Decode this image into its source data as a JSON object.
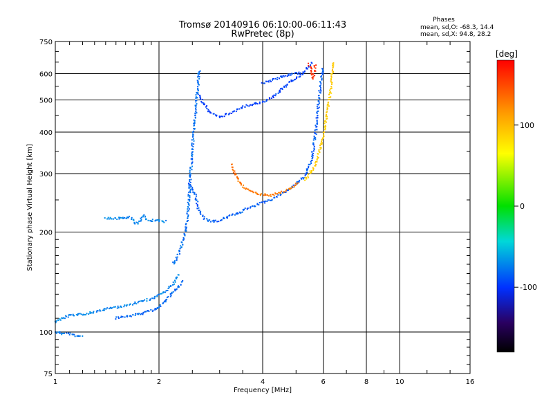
{
  "chart_data": {
    "type": "scatter",
    "title": "Tromsø 20140916 06:10:00-06:11:43",
    "subtitle": "RwPretec (8p)",
    "xlabel": "Frequency [MHz]",
    "ylabel": "Stationary phase Virtual Height [km]",
    "xscale": "log",
    "yscale": "log",
    "xlim": [
      1,
      16
    ],
    "ylim": [
      75,
      750
    ],
    "x_ticks": [
      {
        "value": 1,
        "label": "1"
      },
      {
        "value": 2,
        "label": "2"
      },
      {
        "value": 4,
        "label": "4"
      },
      {
        "value": 6,
        "label": "6"
      },
      {
        "value": 8,
        "label": "8"
      },
      {
        "value": 10,
        "label": "10"
      },
      {
        "value": 16,
        "label": "16"
      }
    ],
    "y_ticks": [
      {
        "value": 75,
        "label": "75"
      },
      {
        "value": 100,
        "label": "100"
      },
      {
        "value": 200,
        "label": "200"
      },
      {
        "value": 300,
        "label": "300"
      },
      {
        "value": 400,
        "label": "400"
      },
      {
        "value": 500,
        "label": "500"
      },
      {
        "value": 600,
        "label": "600"
      },
      {
        "value": 750,
        "label": "750"
      }
    ],
    "grid": true,
    "phases": {
      "heading": "Phases",
      "line_o": "mean, sd,O: -68.3, 14.4",
      "line_x": "mean, sd,X:  94.8, 28.2"
    },
    "colorbar": {
      "label": "[deg]",
      "range": [
        -180,
        180
      ],
      "ticks": [
        {
          "value": 100,
          "label": "100"
        },
        {
          "value": 0,
          "label": "0"
        },
        {
          "value": -100,
          "label": "-100"
        }
      ],
      "colormap": "rainbow"
    },
    "traces": [
      {
        "phase": -75,
        "points": [
          [
            1.0,
            100
          ],
          [
            1.05,
            99
          ],
          [
            1.1,
            99
          ],
          [
            1.15,
            97
          ],
          [
            1.2,
            98
          ]
        ]
      },
      {
        "phase": -70,
        "points": [
          [
            1.0,
            107
          ],
          [
            1.05,
            110
          ],
          [
            1.1,
            112
          ],
          [
            1.2,
            113
          ],
          [
            1.3,
            115
          ],
          [
            1.45,
            118
          ],
          [
            1.6,
            120
          ],
          [
            1.8,
            124
          ],
          [
            1.95,
            127
          ],
          [
            2.1,
            133
          ],
          [
            2.2,
            140
          ],
          [
            2.3,
            150
          ]
        ]
      },
      {
        "phase": -80,
        "points": [
          [
            1.5,
            110
          ],
          [
            1.65,
            112
          ],
          [
            1.8,
            114
          ],
          [
            1.95,
            117
          ],
          [
            2.05,
            122
          ],
          [
            2.15,
            128
          ],
          [
            2.25,
            135
          ],
          [
            2.35,
            143
          ]
        ]
      },
      {
        "phase": -70,
        "points": [
          [
            1.4,
            220
          ],
          [
            1.5,
            220
          ],
          [
            1.6,
            220
          ],
          [
            1.65,
            222
          ],
          [
            1.7,
            213
          ],
          [
            1.75,
            213
          ],
          [
            1.8,
            225
          ],
          [
            1.85,
            218
          ],
          [
            1.9,
            217
          ],
          [
            2.0,
            216
          ],
          [
            2.1,
            215
          ]
        ]
      },
      {
        "phase": -78,
        "points": [
          [
            2.2,
            160
          ],
          [
            2.3,
            175
          ],
          [
            2.35,
            190
          ],
          [
            2.4,
            205
          ],
          [
            2.43,
            230
          ],
          [
            2.45,
            260
          ],
          [
            2.47,
            300
          ],
          [
            2.5,
            350
          ],
          [
            2.52,
            400
          ],
          [
            2.55,
            450
          ],
          [
            2.57,
            500
          ],
          [
            2.6,
            560
          ],
          [
            2.62,
            620
          ]
        ]
      },
      {
        "phase": -85,
        "points": [
          [
            2.45,
            280
          ],
          [
            2.55,
            260
          ],
          [
            2.6,
            235
          ],
          [
            2.7,
            220
          ],
          [
            2.85,
            215
          ],
          [
            3.0,
            217
          ],
          [
            3.2,
            223
          ],
          [
            3.4,
            228
          ],
          [
            3.6,
            235
          ],
          [
            3.8,
            240
          ],
          [
            4.0,
            245
          ],
          [
            4.3,
            252
          ],
          [
            4.6,
            262
          ],
          [
            5.0,
            278
          ],
          [
            5.3,
            295
          ],
          [
            5.55,
            330
          ],
          [
            5.7,
            400
          ],
          [
            5.8,
            480
          ],
          [
            5.9,
            560
          ],
          [
            6.0,
            630
          ]
        ]
      },
      {
        "phase": -95,
        "points": [
          [
            2.6,
            520
          ],
          [
            2.8,
            460
          ],
          [
            3.0,
            445
          ],
          [
            3.2,
            455
          ],
          [
            3.4,
            470
          ],
          [
            3.6,
            480
          ],
          [
            3.8,
            488
          ],
          [
            4.0,
            492
          ],
          [
            4.2,
            505
          ],
          [
            4.4,
            520
          ],
          [
            4.6,
            545
          ],
          [
            4.8,
            565
          ],
          [
            5.0,
            580
          ],
          [
            5.2,
            600
          ],
          [
            5.4,
            625
          ],
          [
            5.6,
            648
          ]
        ]
      },
      {
        "phase": -92,
        "points": [
          [
            4.0,
            560
          ],
          [
            4.3,
            575
          ],
          [
            4.6,
            590
          ],
          [
            4.9,
            600
          ],
          [
            5.2,
            605
          ]
        ]
      },
      {
        "phase": 130,
        "points": [
          [
            3.25,
            320
          ],
          [
            3.35,
            295
          ],
          [
            3.5,
            275
          ],
          [
            3.7,
            265
          ],
          [
            3.9,
            260
          ],
          [
            4.2,
            258
          ],
          [
            4.5,
            262
          ],
          [
            4.8,
            270
          ],
          [
            5.1,
            283
          ]
        ]
      },
      {
        "phase": 90,
        "points": [
          [
            5.3,
            287
          ],
          [
            5.55,
            305
          ],
          [
            5.75,
            330
          ],
          [
            5.9,
            360
          ],
          [
            6.0,
            390
          ],
          [
            6.1,
            430
          ],
          [
            6.2,
            480
          ],
          [
            6.3,
            530
          ],
          [
            6.35,
            590
          ],
          [
            6.4,
            650
          ]
        ]
      },
      {
        "phase": 160,
        "points": [
          [
            5.45,
            640
          ],
          [
            5.55,
            610
          ],
          [
            5.6,
            580
          ],
          [
            5.7,
            640
          ]
        ]
      }
    ]
  }
}
